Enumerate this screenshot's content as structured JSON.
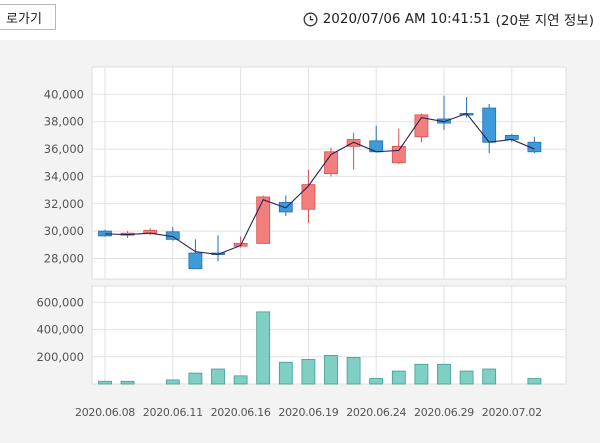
{
  "header": {
    "back_label": "로가기",
    "timestamp": "2020/07/06 AM 10:41:51",
    "delay_note": "(20분 지연 정보)"
  },
  "colors": {
    "up": "#f37e7e",
    "up_border": "#d94d4d",
    "down": "#3f9ad9",
    "down_border": "#1f6fb2",
    "volume": "#7fcfc4",
    "volume_border": "#3f9c90",
    "ma_line": "#2a2350"
  },
  "chart_data": {
    "type": "candlestick",
    "price_axis": {
      "ylim": [
        26500,
        42000
      ],
      "ticks": [
        28000,
        30000,
        32000,
        34000,
        36000,
        38000,
        40000
      ],
      "tick_labels": [
        "28,000",
        "30,000",
        "32,000",
        "34,000",
        "36,000",
        "38,000",
        "40,000"
      ]
    },
    "volume_axis": {
      "ylim": [
        0,
        720000
      ],
      "ticks": [
        200000,
        400000,
        600000
      ],
      "tick_labels": [
        "200,000",
        "400,000",
        "600,000"
      ]
    },
    "x_labels": [
      "2020.06.08",
      "2020.06.11",
      "2020.06.16",
      "2020.06.19",
      "2020.06.24",
      "2020.06.29",
      "2020.07.02"
    ],
    "x_label_index": [
      0,
      3,
      6,
      9,
      12,
      15,
      18
    ],
    "grid": true,
    "days": [
      {
        "o": 30000,
        "h": 30100,
        "l": 29600,
        "c": 29650,
        "v": 20000
      },
      {
        "o": 29700,
        "h": 30000,
        "l": 29500,
        "c": 29850,
        "v": 20000
      },
      {
        "o": 29850,
        "h": 30200,
        "l": 29700,
        "c": 30050,
        "v": null
      },
      {
        "o": 29950,
        "h": 30300,
        "l": 29300,
        "c": 29400,
        "v": 30000
      },
      {
        "o": 28400,
        "h": 29400,
        "l": 27250,
        "c": 27250,
        "v": 80000
      },
      {
        "o": 28400,
        "h": 29700,
        "l": 27800,
        "c": 28300,
        "v": 110000
      },
      {
        "o": 28900,
        "h": 29600,
        "l": 28800,
        "c": 29100,
        "v": 60000
      },
      {
        "o": 29100,
        "h": 32600,
        "l": 29100,
        "c": 32500,
        "v": 530000
      },
      {
        "o": 32100,
        "h": 32600,
        "l": 31100,
        "c": 31400,
        "v": 160000
      },
      {
        "o": 31600,
        "h": 34500,
        "l": 30600,
        "c": 33400,
        "v": 180000
      },
      {
        "o": 34200,
        "h": 36100,
        "l": 34000,
        "c": 35800,
        "v": 210000
      },
      {
        "o": 36200,
        "h": 37200,
        "l": 34500,
        "c": 36700,
        "v": 195000
      },
      {
        "o": 36600,
        "h": 37700,
        "l": 35800,
        "c": 35800,
        "v": 40000
      },
      {
        "o": 35000,
        "h": 37500,
        "l": 34900,
        "c": 36200,
        "v": 95000
      },
      {
        "o": 36900,
        "h": 38600,
        "l": 36500,
        "c": 38500,
        "v": 145000
      },
      {
        "o": 38200,
        "h": 39900,
        "l": 37400,
        "c": 37900,
        "v": 145000
      },
      {
        "o": 38600,
        "h": 39800,
        "l": 38300,
        "c": 38500,
        "v": 95000
      },
      {
        "o": 39000,
        "h": 39300,
        "l": 35700,
        "c": 36500,
        "v": 110000
      },
      {
        "o": 37000,
        "h": 37100,
        "l": 36500,
        "c": 36700,
        "v": null
      },
      {
        "o": 36500,
        "h": 36900,
        "l": 35700,
        "c": 35800,
        "v": 40000
      }
    ],
    "ma_line": [
      29800,
      29750,
      29850,
      29600,
      28500,
      28300,
      28950,
      32300,
      31700,
      33300,
      35600,
      36500,
      35800,
      35900,
      38300,
      38000,
      38600,
      36500,
      36700,
      36000
    ]
  }
}
